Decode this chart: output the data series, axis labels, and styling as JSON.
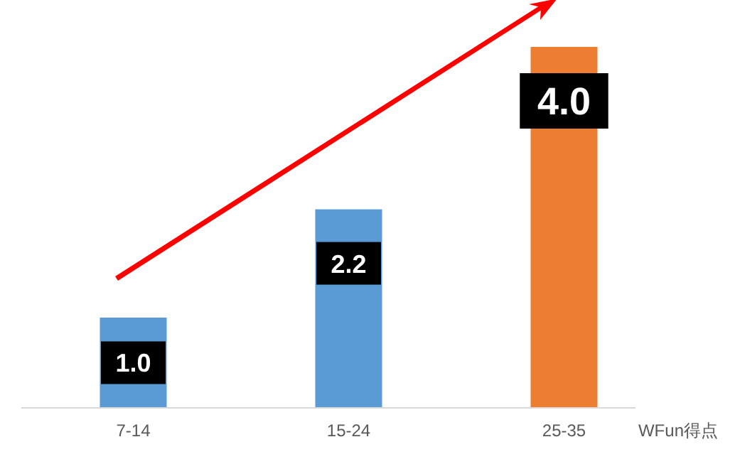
{
  "chart_data": {
    "type": "bar",
    "categories": [
      "7-14",
      "15-24",
      "25-35"
    ],
    "values": [
      1.0,
      2.2,
      4.0
    ],
    "colors": [
      "#5b9bd5",
      "#5b9bd5",
      "#ed7d31"
    ],
    "xlabel": "WFun得点",
    "value_labels": [
      "1.0",
      "2.2",
      "4.0"
    ]
  }
}
